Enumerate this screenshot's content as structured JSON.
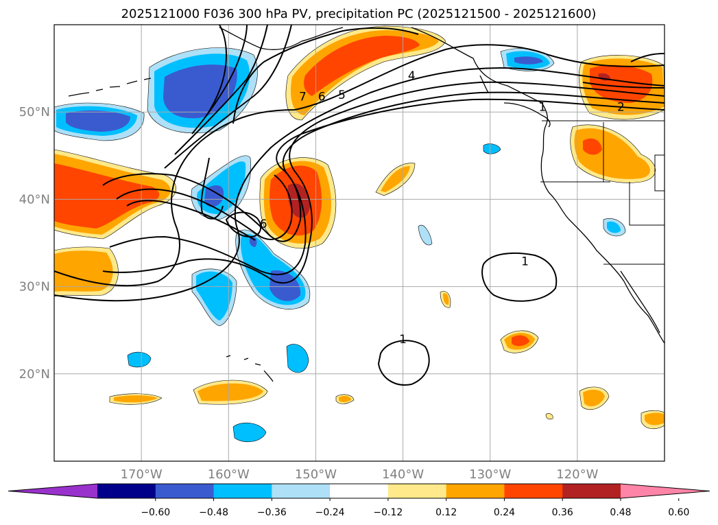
{
  "title": "2025121000 F036 300 hPa PV, precipitation PC (2025121500 - 2025121600)",
  "map": {
    "lat_labels": [
      "50°N",
      "40°N",
      "30°N",
      "20°N"
    ],
    "lon_labels": [
      "170°W",
      "160°W",
      "150°W",
      "140°W",
      "130°W",
      "120°W"
    ],
    "lat_values": [
      50,
      40,
      30,
      20
    ],
    "lon_values": [
      -170,
      -160,
      -150,
      -140,
      -130,
      -120
    ],
    "extent": {
      "lon_min": -180,
      "lon_max": -110,
      "lat_min": 10,
      "lat_max": 60
    },
    "gridlines": true
  },
  "colorbar": {
    "levels": [
      "−0.60",
      "−0.48",
      "−0.36",
      "−0.24",
      "−0.12",
      "0.12",
      "0.24",
      "0.36",
      "0.48",
      "0.60"
    ],
    "colors": [
      "#9932cc",
      "#00008b",
      "#3a5bd0",
      "#00bfff",
      "#aee0f7",
      "#ffffff",
      "#ffe98a",
      "#ffa500",
      "#ff4500",
      "#b22222",
      "#ff85a8"
    ],
    "extend": "both"
  },
  "contour_labels": [
    {
      "text": "7",
      "lon": -151.5,
      "lat": 51.8
    },
    {
      "text": "6",
      "lon": -149.3,
      "lat": 51.8
    },
    {
      "text": "5",
      "lon": -147.0,
      "lat": 52.0
    },
    {
      "text": "4",
      "lon": -139.0,
      "lat": 54.2
    },
    {
      "text": "1",
      "lon": -124.0,
      "lat": 50.6
    },
    {
      "text": "2",
      "lon": -115.0,
      "lat": 50.6
    },
    {
      "text": "6",
      "lon": -156.0,
      "lat": 37.2
    },
    {
      "text": "1",
      "lon": -126.0,
      "lat": 32.9
    },
    {
      "text": "1",
      "lon": -140.0,
      "lat": 24.0
    }
  ]
}
